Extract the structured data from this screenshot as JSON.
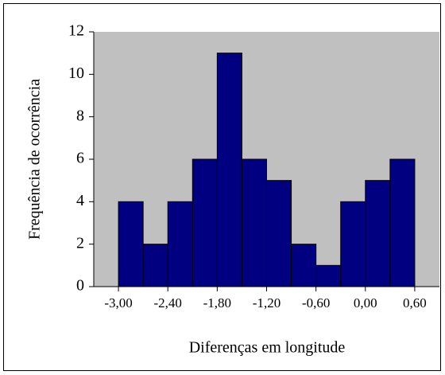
{
  "chart_data": {
    "type": "histogram",
    "x_label": "Diferenças em longitude",
    "y_label": "Frequência de ocorrência",
    "bins": [
      -3.0,
      -2.7,
      -2.4,
      -2.1,
      -1.8,
      -1.5,
      -1.2,
      -0.9,
      -0.6,
      -0.3,
      0.0,
      0.3,
      0.6
    ],
    "values": [
      4,
      2,
      4,
      6,
      11,
      6,
      5,
      2,
      1,
      4,
      5,
      6
    ],
    "color": "#000080",
    "background": "#c0c0c0",
    "xlim": [
      -3.3,
      0.9
    ],
    "xticks": [
      {
        "value": -3.0,
        "label": "-3,00"
      },
      {
        "value": -2.4,
        "label": "-2,40"
      },
      {
        "value": -1.8,
        "label": "-1,80"
      },
      {
        "value": -1.2,
        "label": "-1,20"
      },
      {
        "value": -0.6,
        "label": "-0,60"
      },
      {
        "value": 0,
        "label": "0,00"
      },
      {
        "value": 0.6,
        "label": "0,60"
      }
    ],
    "ylim": [
      0,
      12
    ],
    "yticks": [
      0,
      2,
      4,
      6,
      8,
      10,
      12
    ]
  }
}
